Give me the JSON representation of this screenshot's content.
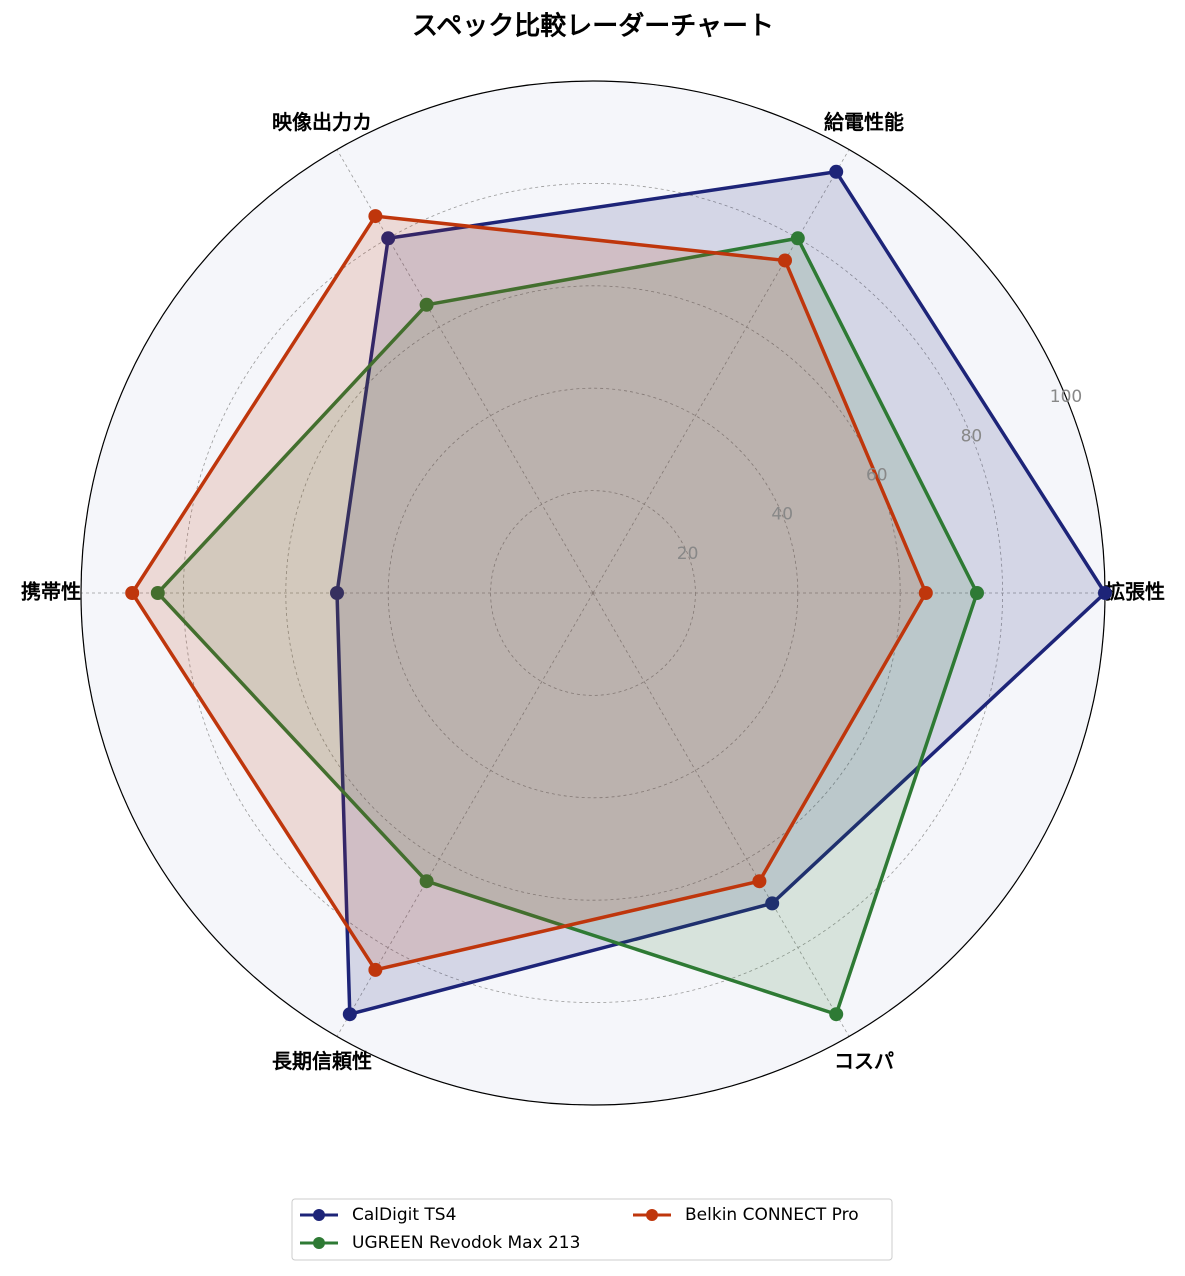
{
  "chart_data": {
    "type": "radar",
    "title": "スペック比較レーダーチャート",
    "categories": [
      "拡張性",
      "給電性能",
      "映像出力カ",
      "携帯性",
      "長期信頼性",
      "コスパ"
    ],
    "series": [
      {
        "name": "CalDigit TS4",
        "color": "#1d2478",
        "values": [
          100,
          95,
          80,
          50,
          95,
          70
        ]
      },
      {
        "name": "UGREEN Revodok Max 213",
        "color": "#2e7a34",
        "values": [
          75,
          80,
          65,
          85,
          65,
          95
        ]
      },
      {
        "name": "Belkin CONNECT Pro",
        "color": "#bf360c",
        "values": [
          65,
          75,
          85,
          90,
          85,
          65
        ]
      }
    ],
    "ylim": [
      0,
      100
    ],
    "yticks": [
      20,
      40,
      60,
      80,
      100
    ],
    "grid": true,
    "legend": "bottom"
  }
}
